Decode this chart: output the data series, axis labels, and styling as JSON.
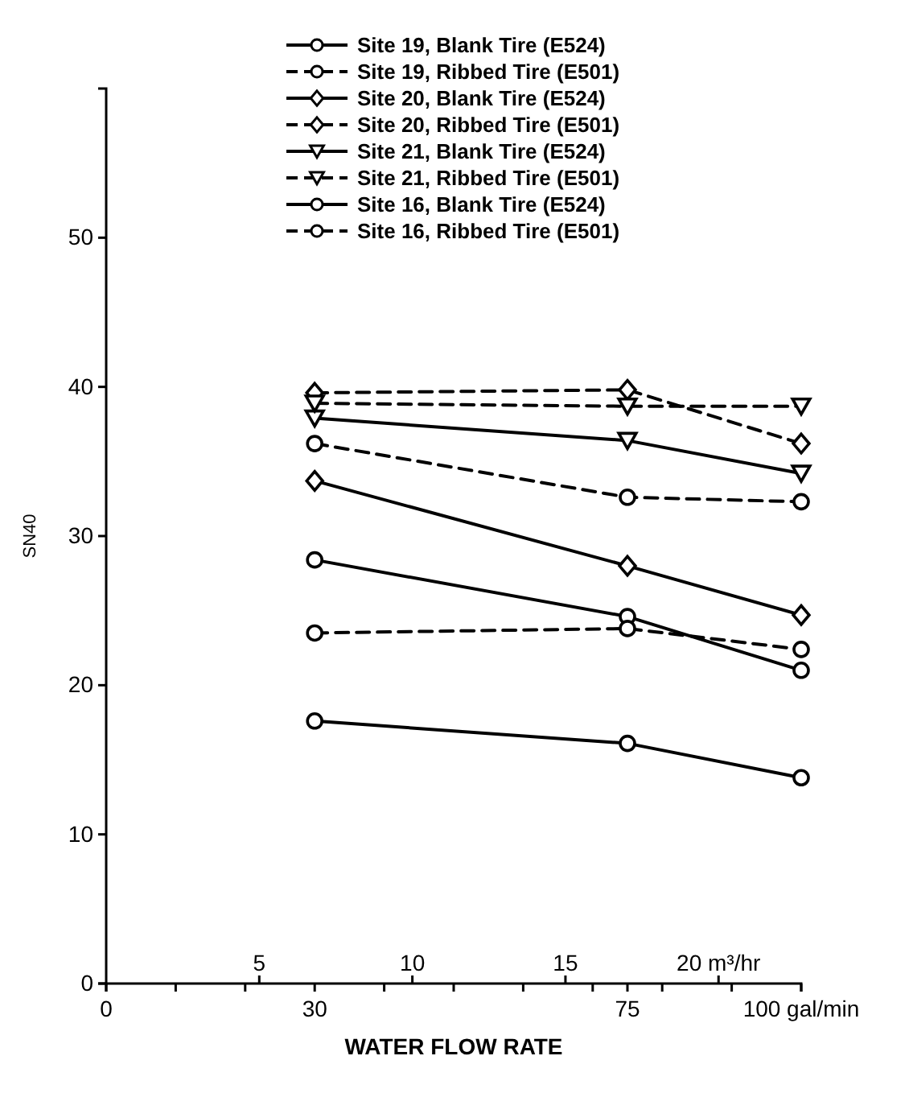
{
  "chart_data": {
    "type": "line",
    "xlabel": "WATER FLOW RATE",
    "ylabel": "SN40",
    "x": [
      30,
      75,
      100
    ],
    "xlim": [
      0,
      100
    ],
    "xticks": [
      0,
      {
        "value": 10,
        "label": null
      },
      {
        "value": 20,
        "label": null
      },
      30,
      {
        "value": 40,
        "label": null
      },
      {
        "value": 50,
        "label": null
      },
      {
        "value": 60,
        "label": null
      },
      {
        "value": 70,
        "label": null
      },
      75,
      {
        "value": 80,
        "label": null
      },
      {
        "value": 90,
        "label": null
      },
      {
        "value": 100,
        "label": "100 gal/min"
      }
    ],
    "x2lim": [
      0,
      22.7
    ],
    "x2ticks": [
      5,
      10,
      15,
      {
        "value": 20,
        "label": "20 m³/hr"
      }
    ],
    "ylim": [
      0,
      60
    ],
    "yticks": [
      0,
      10,
      20,
      30,
      40,
      50
    ],
    "legend": "top",
    "grid": false,
    "series": [
      {
        "name": "Site 19, Blank Tire (E524)",
        "color": "#000000",
        "marker": "circle",
        "line_style": "solid",
        "values": [
          28.4,
          24.6,
          21.0
        ]
      },
      {
        "name": "Site 19, Ribbed Tire (E501)",
        "color": "#000000",
        "marker": "circle",
        "line_style": "dashed",
        "values": [
          36.2,
          32.6,
          32.3
        ]
      },
      {
        "name": "Site 20, Blank Tire (E524)",
        "color": "#000000",
        "marker": "diamond",
        "line_style": "solid",
        "values": [
          33.7,
          28.0,
          24.7
        ]
      },
      {
        "name": "Site 20, Ribbed Tire (E501)",
        "color": "#000000",
        "marker": "diamond",
        "line_style": "dashed",
        "values": [
          39.6,
          39.8,
          36.2
        ]
      },
      {
        "name": "Site 21, Blank Tire (E524)",
        "color": "#000000",
        "marker": "triangle",
        "line_style": "solid",
        "values": [
          37.9,
          36.4,
          34.2
        ]
      },
      {
        "name": "Site 21, Ribbed Tire (E501)",
        "color": "#000000",
        "marker": "triangle",
        "line_style": "dashed",
        "values": [
          38.9,
          38.7,
          38.7
        ]
      },
      {
        "name": "Site 16, Blank Tire (E524)",
        "color": "#000000",
        "marker": "circle",
        "line_style": "solid",
        "values": [
          17.6,
          16.1,
          13.8
        ]
      },
      {
        "name": "Site 16, Ribbed Tire (E501)",
        "color": "#000000",
        "marker": "circle",
        "line_style": "dashed",
        "values": [
          23.5,
          23.8,
          22.4
        ]
      }
    ]
  }
}
